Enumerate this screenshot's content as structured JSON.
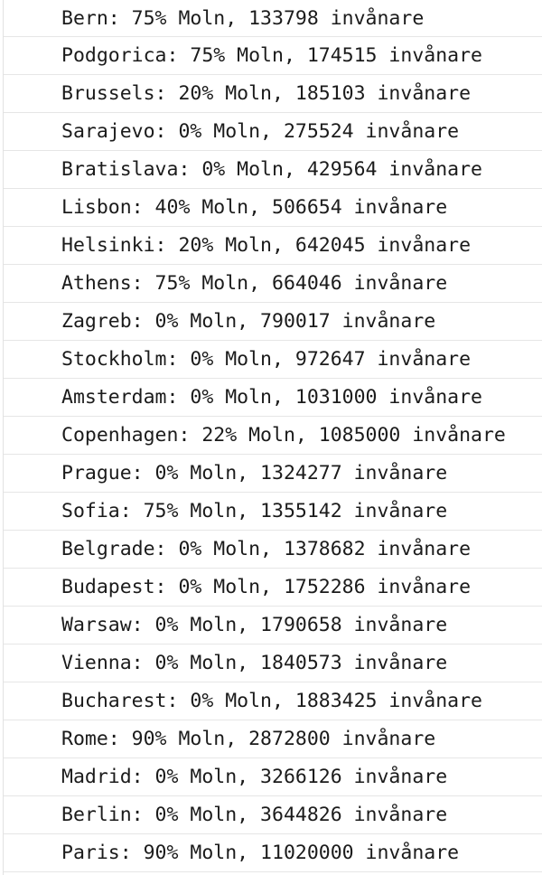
{
  "console": {
    "lines": [
      "Bern: 75% Moln, 133798 invånare",
      "Podgorica: 75% Moln, 174515 invånare",
      "Brussels: 20% Moln, 185103 invånare",
      "Sarajevo: 0% Moln, 275524 invånare",
      "Bratislava: 0% Moln, 429564 invånare",
      "Lisbon: 40% Moln, 506654 invånare",
      "Helsinki: 20% Moln, 642045 invånare",
      "Athens: 75% Moln, 664046 invånare",
      "Zagreb: 0% Moln, 790017 invånare",
      "Stockholm: 0% Moln, 972647 invånare",
      "Amsterdam: 0% Moln, 1031000 invånare",
      "Copenhagen: 22% Moln, 1085000 invånare",
      "Prague: 0% Moln, 1324277 invånare",
      "Sofia: 75% Moln, 1355142 invånare",
      "Belgrade: 0% Moln, 1378682 invånare",
      "Budapest: 0% Moln, 1752286 invånare",
      "Warsaw: 0% Moln, 1790658 invånare",
      "Vienna: 0% Moln, 1840573 invånare",
      "Bucharest: 0% Moln, 1883425 invånare",
      "Rome: 90% Moln, 2872800 invånare",
      "Madrid: 0% Moln, 3266126 invånare",
      "Berlin: 0% Moln, 3644826 invånare",
      "Paris: 90% Moln, 11020000 invånare"
    ]
  }
}
